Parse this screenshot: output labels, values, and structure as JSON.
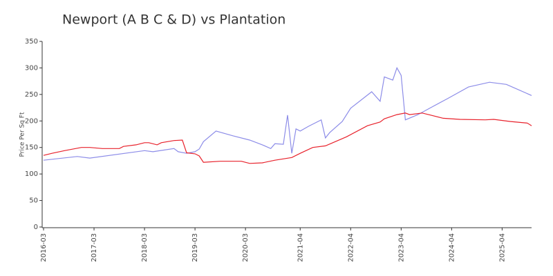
{
  "chart_data": {
    "type": "line",
    "title": "Newport (A B C & D) vs Plantation",
    "y_label": "Price Per Sq Ft",
    "xlim": [
      "2016-03",
      "2025-11"
    ],
    "xticks": [
      "2016-03",
      "2017-03",
      "2018-03",
      "2019-03",
      "2020-03",
      "2021-04",
      "2022-04",
      "2023-04",
      "2024-04",
      "2025-04"
    ],
    "ylim": [
      0,
      350
    ],
    "yticks": [
      0,
      50,
      100,
      150,
      200,
      250,
      300,
      350
    ],
    "grid": false,
    "series": [
      {
        "color": "#8c8ce8",
        "x": [
          "2016-03",
          "2016-11",
          "2017-02",
          "2018-03",
          "2018-05",
          "2018-10",
          "2018-11",
          "2019-01",
          "2019-03",
          "2019-04",
          "2019-05",
          "2019-08",
          "2019-12",
          "2020-04",
          "2020-07",
          "2020-09",
          "2020-10",
          "2020-12",
          "2021-01",
          "2021-02",
          "2021-03",
          "2021-04",
          "2021-06",
          "2021-09",
          "2021-10",
          "2021-11",
          "2022-02",
          "2022-04",
          "2022-09",
          "2022-11",
          "2022-12",
          "2023-02",
          "2023-03",
          "2023-04",
          "2023-05",
          "2023-08",
          "2023-11",
          "2024-03",
          "2024-08",
          "2025-01",
          "2025-05",
          "2025-11"
        ],
        "values": [
          126,
          133,
          130,
          144,
          142,
          148,
          142,
          139,
          142,
          147,
          161,
          181,
          172,
          164,
          155,
          148,
          157,
          156,
          211,
          139,
          185,
          181,
          190,
          202,
          168,
          178,
          199,
          224,
          255,
          237,
          283,
          277,
          300,
          286,
          202,
          212,
          225,
          242,
          264,
          273,
          269,
          248
        ]
      },
      {
        "color": "#e8202a",
        "x": [
          "2016-03",
          "2016-05",
          "2016-08",
          "2016-12",
          "2017-02",
          "2017-05",
          "2017-09",
          "2017-10",
          "2018-01",
          "2018-03",
          "2018-04",
          "2018-06",
          "2018-07",
          "2018-10",
          "2018-12",
          "2019-01",
          "2019-03",
          "2019-04",
          "2019-05",
          "2019-09",
          "2020-02",
          "2020-04",
          "2020-07",
          "2020-10",
          "2021-02",
          "2021-04",
          "2021-07",
          "2021-10",
          "2022-03",
          "2022-08",
          "2022-11",
          "2022-12",
          "2023-03",
          "2023-05",
          "2023-06",
          "2023-09",
          "2023-11",
          "2024-02",
          "2024-06",
          "2024-12",
          "2025-02",
          "2025-06",
          "2025-10",
          "2025-11"
        ],
        "values": [
          135,
          139,
          144,
          150,
          150,
          148,
          148,
          152,
          155,
          159,
          159,
          155,
          159,
          163,
          164,
          140,
          138,
          134,
          122,
          124,
          124,
          120,
          121,
          126,
          131,
          139,
          150,
          153,
          170,
          191,
          198,
          204,
          212,
          215,
          212,
          215,
          211,
          205,
          203,
          202,
          203,
          199,
          196,
          191
        ]
      }
    ]
  }
}
